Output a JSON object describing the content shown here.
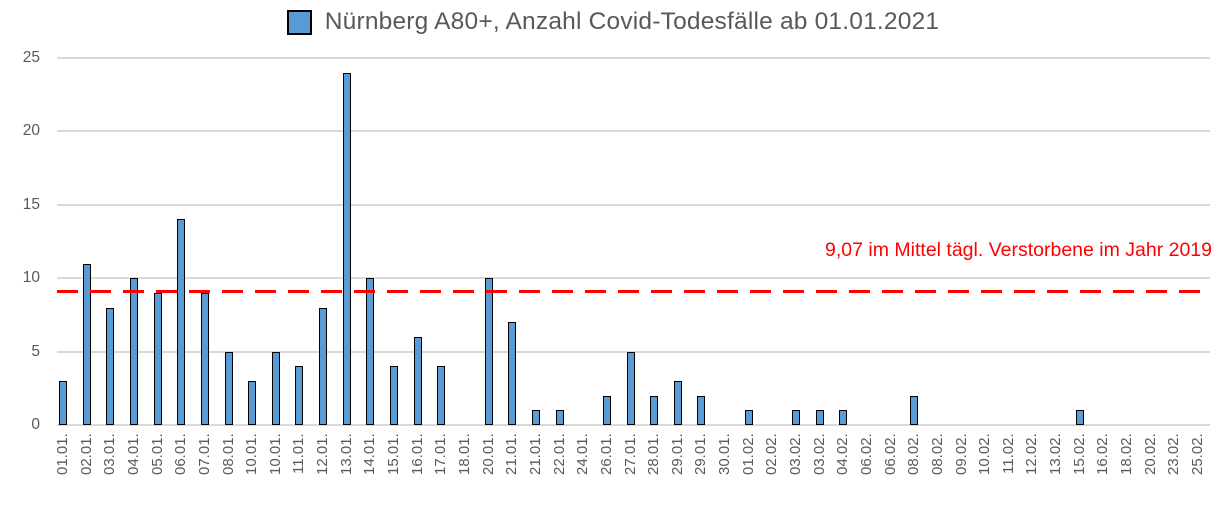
{
  "title": "Nürnberg A80+, Anzahl Covid-Todesfälle ab 01.01.2021",
  "colors": {
    "bar_fill": "#5B9BD5",
    "bar_border": "#000000",
    "gridline": "#D9D9D9",
    "axis_text": "#595959",
    "title_text": "#595959",
    "annotation_red": "#FF0000"
  },
  "chart_data": {
    "type": "bar",
    "title": "Nürnberg A80+, Anzahl Covid-Todesfälle ab 01.01.2021",
    "xlabel": "",
    "ylabel": "",
    "ylim": [
      0,
      25
    ],
    "yticks": [
      0,
      5,
      10,
      15,
      20,
      25
    ],
    "grid": true,
    "legend_position": "title-left",
    "categories": [
      "01.01.",
      "02.01.",
      "03.01.",
      "04.01.",
      "05.01.",
      "06.01.",
      "07.01.",
      "08.01.",
      "10.01.",
      "10.01.",
      "11.01.",
      "12.01.",
      "13.01.",
      "14.01.",
      "15.01.",
      "16.01.",
      "17.01.",
      "18.01.",
      "20.01.",
      "21.01.",
      "21.01.",
      "22.01.",
      "24.01.",
      "26.01.",
      "27.01.",
      "28.01.",
      "29.01.",
      "29.01.",
      "30.01.",
      "01.02.",
      "02.02.",
      "03.02.",
      "03.02.",
      "04.02.",
      "06.02.",
      "06.02.",
      "08.02.",
      "08.02.",
      "09.02.",
      "10.02.",
      "11.02.",
      "12.02.",
      "13.02.",
      "15.02.",
      "16.02.",
      "18.02.",
      "20.02.",
      "23.02.",
      "25.02."
    ],
    "values": [
      3,
      11,
      8,
      10,
      9,
      14,
      9,
      5,
      3,
      5,
      4,
      8,
      24,
      10,
      4,
      6,
      4,
      0,
      10,
      7,
      1,
      1,
      0,
      2,
      5,
      2,
      3,
      2,
      0,
      1,
      0,
      1,
      1,
      1,
      0,
      0,
      2,
      0,
      0,
      0,
      0,
      0,
      0,
      1,
      0,
      0,
      0,
      0,
      0
    ],
    "reference_line": {
      "value": 9.07,
      "label": "9,07 im Mittel tägl. Verstorbene im Jahr 2019",
      "color": "#FF0000",
      "style": "dashed"
    }
  }
}
